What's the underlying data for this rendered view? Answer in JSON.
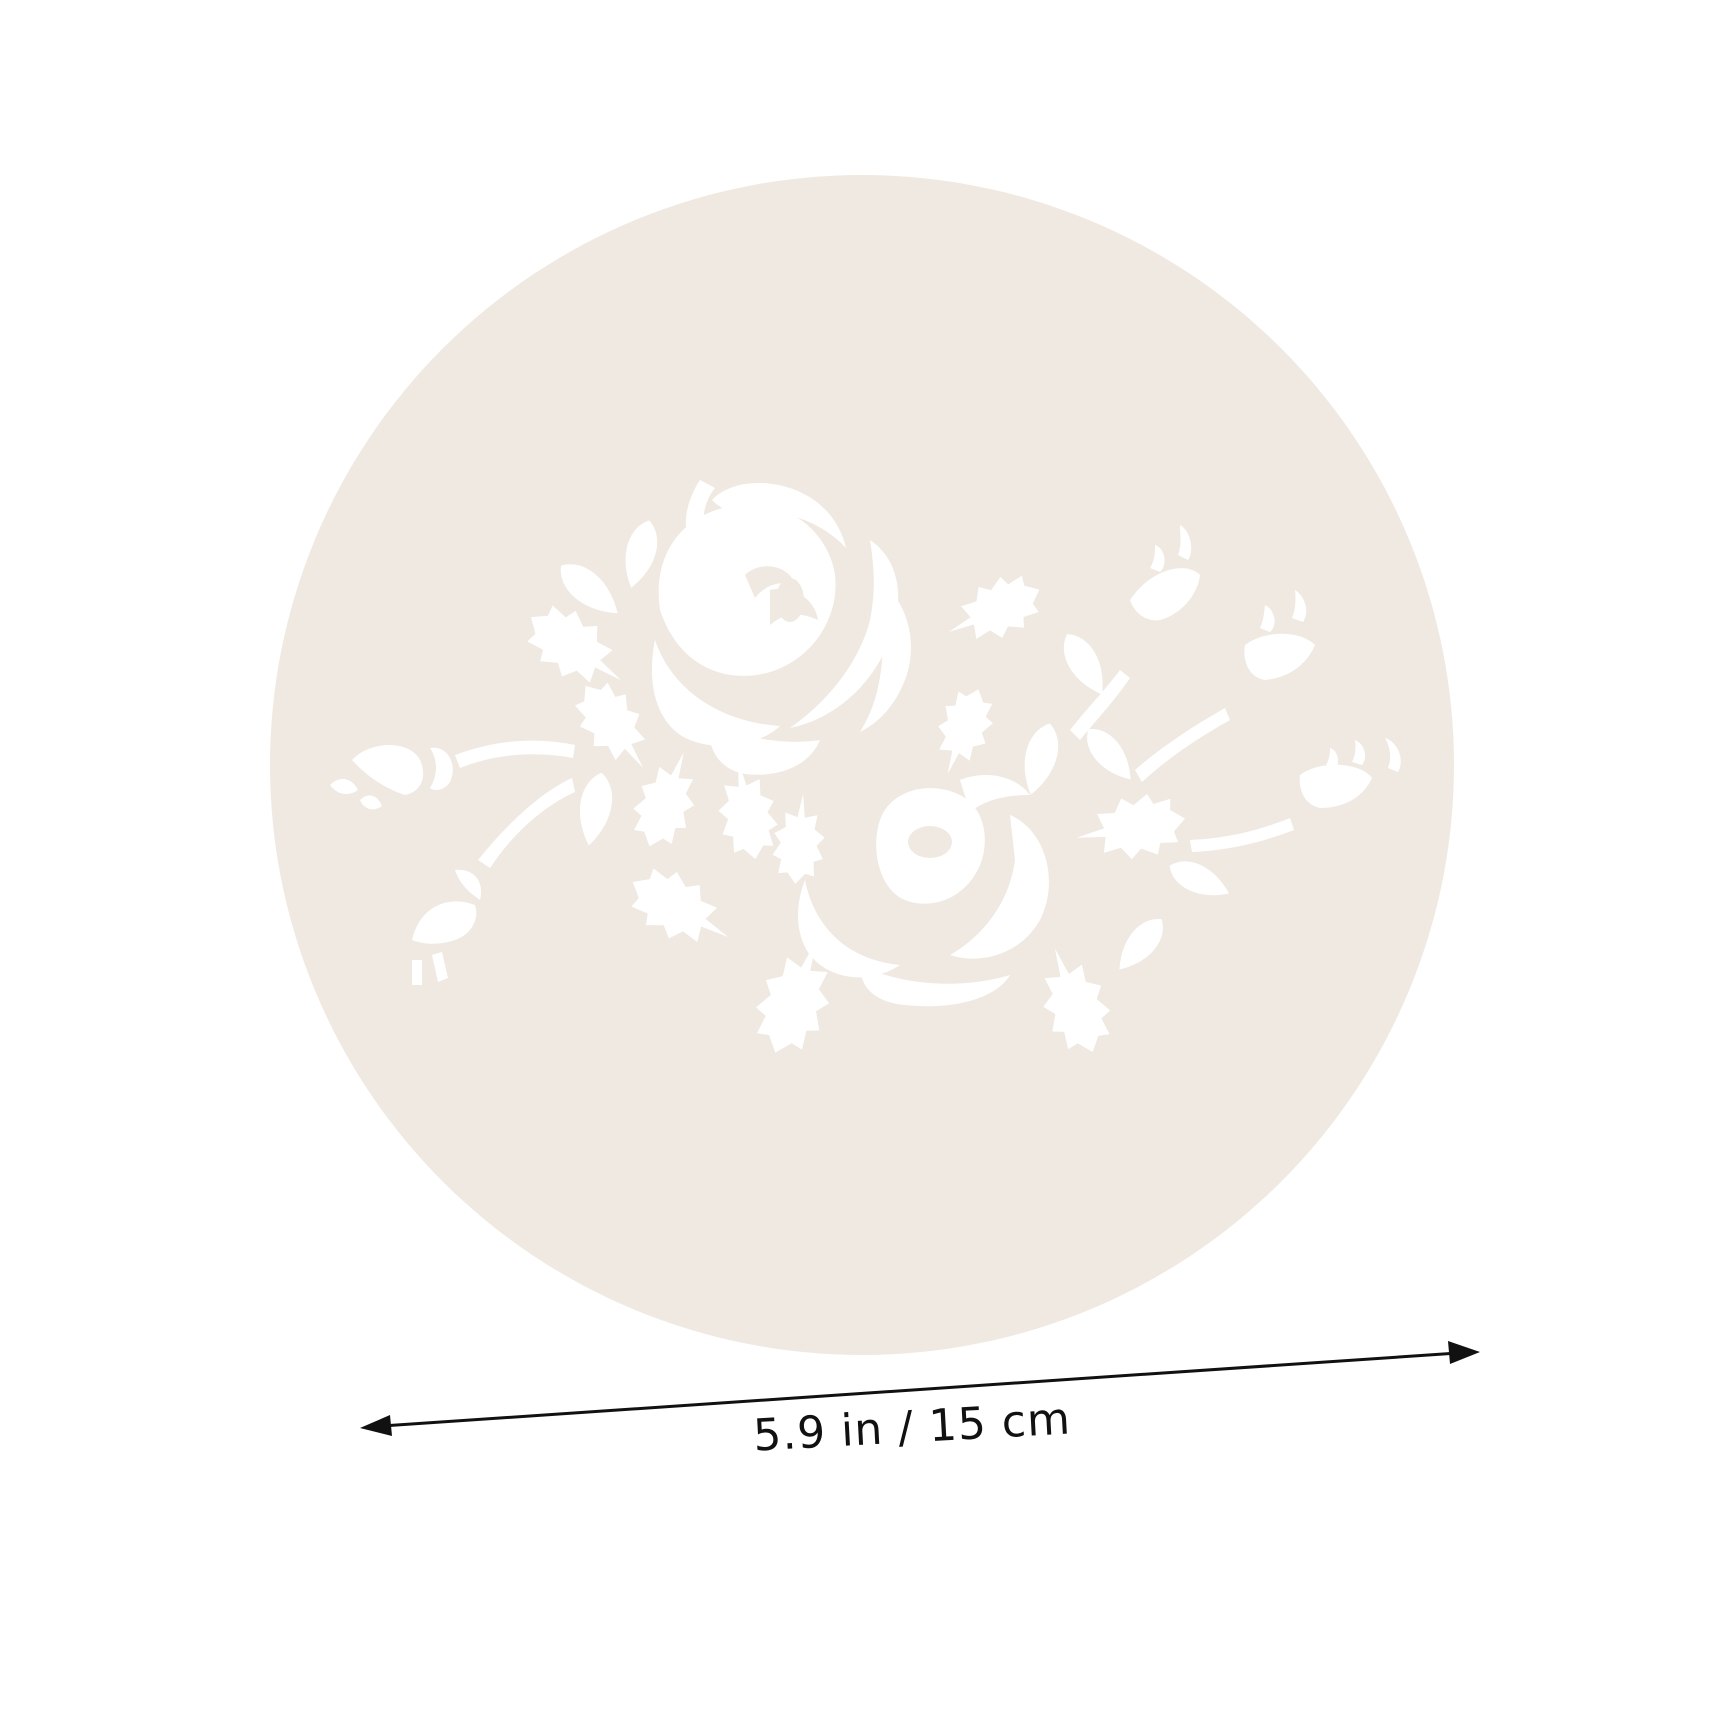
{
  "product": {
    "name": "rose-stencil-disc",
    "disc_color": "#f0e9e2",
    "cutout_color": "#ffffff"
  },
  "dimension": {
    "label": "5.9 in / 15 cm",
    "arrow_color": "#111111"
  },
  "icons": [
    "rose-icon",
    "leaf-icon",
    "bud-icon",
    "stem-icon",
    "arrow-icon"
  ]
}
